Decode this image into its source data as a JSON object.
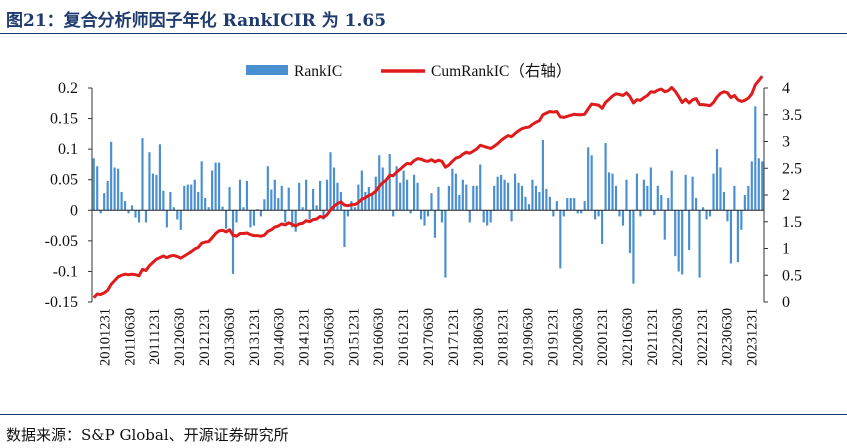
{
  "header": {
    "title": "图21：复合分析师因子年化 RankICIR 为 1.65"
  },
  "footer": {
    "source": "数据来源：S&P Global、开源证券研究所"
  },
  "chart_data": {
    "type": "bar+line",
    "title": "",
    "legend": [
      "RankIC",
      "CumRankIC（右轴）"
    ],
    "legend_position": "top",
    "colors": {
      "bar": "#4a8fd0",
      "line": "#e01b1b",
      "axis": "#333333",
      "text": "#111111"
    },
    "left_axis": {
      "ylim": [
        -0.15,
        0.2
      ],
      "ticks": [
        0.2,
        0.15,
        0.1,
        0.05,
        0,
        -0.05,
        -0.1,
        -0.15
      ],
      "tick_labels": [
        "0.2",
        "0.15",
        "0.1",
        "0.05",
        "0",
        "-0.05",
        "-0.1",
        "-0.15"
      ]
    },
    "right_axis": {
      "ylim": [
        0,
        4
      ],
      "ticks": [
        0,
        0.5,
        1,
        1.5,
        2,
        2.5,
        3,
        3.5,
        4
      ],
      "tick_labels": [
        "0",
        "0.5",
        "1",
        "1.5",
        "2",
        "2.5",
        "3",
        "3.5",
        "4"
      ]
    },
    "x_tick_labels": [
      "20101231",
      "20110630",
      "20111231",
      "20120630",
      "20121231",
      "20130630",
      "20131231",
      "20140630",
      "20141231",
      "20150630",
      "20151231",
      "20160630",
      "20161231",
      "20170630",
      "20171231",
      "20180630",
      "20181231",
      "20190630",
      "20191231",
      "20200630",
      "20201231",
      "20210630",
      "20211231",
      "20220630",
      "20221231",
      "20230630",
      "20231231"
    ],
    "grid": false,
    "series": [
      {
        "name": "RankIC",
        "type": "bar",
        "axis": "left",
        "values": [
          0.085,
          0.072,
          -0.005,
          0.028,
          0.048,
          0.112,
          0.07,
          0.068,
          0.03,
          0.015,
          -0.005,
          0.008,
          -0.012,
          -0.02,
          0.118,
          -0.02,
          0.095,
          0.06,
          0.058,
          0.108,
          0.032,
          -0.028,
          0.03,
          0.005,
          -0.015,
          -0.032,
          0.04,
          0.042,
          0.042,
          0.05,
          0.03,
          0.08,
          0.02,
          0.005,
          0.065,
          0.078,
          0.078,
          0.006,
          -0.03,
          0.038,
          -0.104,
          -0.02,
          0.05,
          0.005,
          0.048,
          -0.028,
          -0.025,
          0.002,
          -0.01,
          0.018,
          0.072,
          0.034,
          0.05,
          0.02,
          0.04,
          -0.02,
          0.037,
          -0.028,
          -0.035,
          0.045,
          0.005,
          0.05,
          -0.015,
          0.035,
          0.008,
          0.048,
          -0.015,
          0.05,
          0.095,
          0.07,
          0.045,
          0.03,
          -0.06,
          -0.01,
          0.015,
          0.005,
          0.042,
          0.065,
          0.03,
          0.038,
          0.028,
          0.055,
          0.09,
          0.07,
          0.05,
          0.092,
          -0.01,
          0.072,
          0.045,
          0.065,
          0.05,
          -0.005,
          0.058,
          0.045,
          -0.015,
          -0.025,
          -0.01,
          0.028,
          -0.045,
          0.038,
          -0.02,
          -0.11,
          0.04,
          0.068,
          0.06,
          0.025,
          0.05,
          0.042,
          -0.02,
          0.04,
          0.04,
          0.075,
          -0.02,
          -0.025,
          -0.02,
          0.04,
          0.055,
          0.058,
          0.05,
          0.045,
          -0.018,
          0.06,
          0.045,
          0.04,
          0.022,
          0.01,
          0.05,
          0.04,
          0.03,
          0.115,
          0.035,
          0.022,
          -0.01,
          0.015,
          -0.095,
          -0.01,
          0.02,
          0.02,
          0.02,
          -0.005,
          -0.005,
          0.015,
          0.103,
          0.09,
          -0.015,
          -0.01,
          -0.055,
          0.11,
          0.062,
          0.06,
          0.04,
          -0.01,
          -0.025,
          0.05,
          -0.07,
          -0.12,
          0.06,
          -0.01,
          0.05,
          0.04,
          0.07,
          -0.008,
          0.04,
          0.025,
          -0.048,
          0.02,
          0.065,
          -0.075,
          -0.1,
          -0.105,
          0.058,
          -0.065,
          0.055,
          0.02,
          -0.11,
          0.005,
          -0.015,
          -0.01,
          0.06,
          0.1,
          0.07,
          0.03,
          -0.018,
          -0.087,
          0.04,
          -0.085,
          -0.032,
          0.025,
          0.04,
          0.08,
          0.17,
          0.085,
          0.08
        ]
      },
      {
        "name": "CumRankIC（右轴）",
        "type": "line",
        "axis": "right",
        "values": [
          0.08,
          0.15,
          0.14,
          0.17,
          0.22,
          0.33,
          0.4,
          0.47,
          0.5,
          0.52,
          0.51,
          0.52,
          0.51,
          0.49,
          0.61,
          0.59,
          0.68,
          0.74,
          0.8,
          0.83,
          0.86,
          0.83,
          0.86,
          0.87,
          0.85,
          0.82,
          0.86,
          0.9,
          0.94,
          0.99,
          1.02,
          1.1,
          1.12,
          1.13,
          1.2,
          1.28,
          1.33,
          1.34,
          1.31,
          1.35,
          1.25,
          1.23,
          1.28,
          1.28,
          1.29,
          1.26,
          1.24,
          1.24,
          1.23,
          1.25,
          1.32,
          1.35,
          1.4,
          1.42,
          1.46,
          1.44,
          1.48,
          1.45,
          1.42,
          1.46,
          1.47,
          1.52,
          1.5,
          1.54,
          1.55,
          1.6,
          1.58,
          1.63,
          1.72,
          1.79,
          1.84,
          1.87,
          1.81,
          1.8,
          1.82,
          1.82,
          1.86,
          1.92,
          1.95,
          1.99,
          2.02,
          2.07,
          2.16,
          2.23,
          2.28,
          2.37,
          2.36,
          2.43,
          2.48,
          2.54,
          2.59,
          2.58,
          2.64,
          2.68,
          2.67,
          2.64,
          2.63,
          2.66,
          2.62,
          2.65,
          2.63,
          2.52,
          2.56,
          2.63,
          2.69,
          2.71,
          2.76,
          2.8,
          2.78,
          2.82,
          2.86,
          2.93,
          2.91,
          2.89,
          2.87,
          2.91,
          2.96,
          3.02,
          3.07,
          3.11,
          3.09,
          3.15,
          3.2,
          3.24,
          3.26,
          3.27,
          3.32,
          3.36,
          3.39,
          3.5,
          3.53,
          3.56,
          3.55,
          3.56,
          3.46,
          3.45,
          3.47,
          3.49,
          3.51,
          3.5,
          3.5,
          3.51,
          3.61,
          3.7,
          3.69,
          3.68,
          3.62,
          3.73,
          3.79,
          3.85,
          3.89,
          3.88,
          3.86,
          3.91,
          3.84,
          3.72,
          3.78,
          3.77,
          3.82,
          3.86,
          3.93,
          3.92,
          3.96,
          3.98,
          3.93,
          3.95,
          4.01,
          3.94,
          3.84,
          3.73,
          3.79,
          3.72,
          3.78,
          3.8,
          3.69,
          3.69,
          3.68,
          3.67,
          3.73,
          3.83,
          3.9,
          3.93,
          3.91,
          3.82,
          3.86,
          3.78,
          3.75,
          3.77,
          3.81,
          3.89,
          4.06,
          4.14,
          4.22
        ]
      }
    ]
  }
}
